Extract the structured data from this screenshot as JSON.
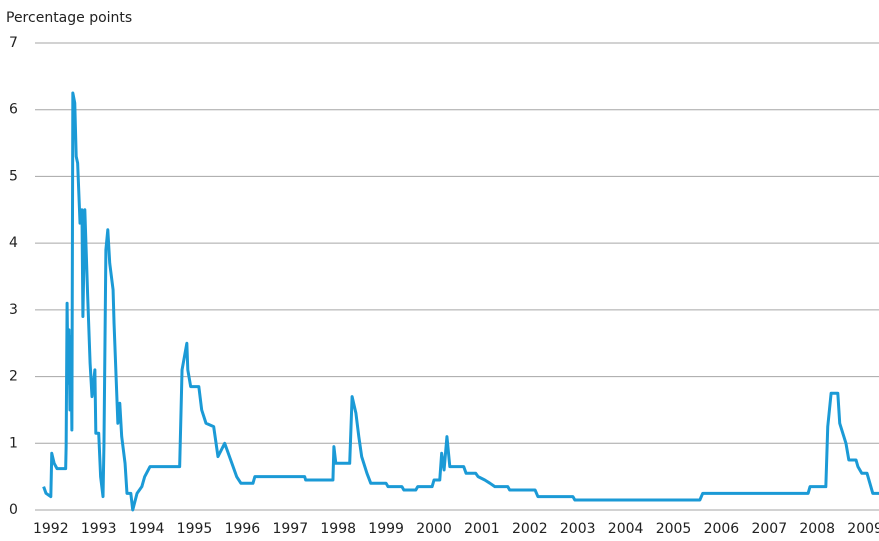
{
  "chart_data": {
    "type": "line",
    "y_label": "Percentage points",
    "color": "#1b9ad6",
    "xlim": [
      1992.17,
      2009.79
    ],
    "ylim": [
      0,
      7
    ],
    "yticks": [
      0,
      1,
      2,
      3,
      4,
      5,
      6,
      7
    ],
    "grid": true,
    "xticks": [
      {
        "value": 1992.5,
        "label": "1992"
      },
      {
        "value": 1993.5,
        "label": "1993"
      },
      {
        "value": 1994.5,
        "label": "1994"
      },
      {
        "value": 1995.5,
        "label": "1995"
      },
      {
        "value": 1996.5,
        "label": "1996"
      },
      {
        "value": 1997.5,
        "label": "1997"
      },
      {
        "value": 1998.5,
        "label": "1998"
      },
      {
        "value": 1999.5,
        "label": "1999"
      },
      {
        "value": 2000.5,
        "label": "2000"
      },
      {
        "value": 2001.5,
        "label": "2001"
      },
      {
        "value": 2002.5,
        "label": "2002"
      },
      {
        "value": 2003.5,
        "label": "2003"
      },
      {
        "value": 2004.5,
        "label": "2004"
      },
      {
        "value": 2005.5,
        "label": "2005"
      },
      {
        "value": 2006.5,
        "label": "2006"
      },
      {
        "value": 2007.5,
        "label": "2007"
      },
      {
        "value": 2008.5,
        "label": "2008"
      },
      {
        "value": 2009.5,
        "label": "2009"
      }
    ],
    "x": [
      1992.35,
      1992.4,
      1992.5,
      1992.52,
      1992.57,
      1992.63,
      1992.81,
      1992.82,
      1992.84,
      1992.86,
      1992.88,
      1992.9,
      1992.92,
      1992.94,
      1992.96,
      1993.0,
      1993.03,
      1993.06,
      1993.11,
      1993.15,
      1993.17,
      1993.21,
      1993.27,
      1993.32,
      1993.36,
      1993.42,
      1993.44,
      1993.5,
      1993.54,
      1993.59,
      1993.61,
      1993.65,
      1993.69,
      1993.73,
      1993.8,
      1993.82,
      1993.9,
      1993.94,
      1993.98,
      1994.05,
      1994.09,
      1994.17,
      1994.21,
      1994.3,
      1994.4,
      1994.46,
      1994.57,
      1995.19,
      1995.24,
      1995.34,
      1995.36,
      1995.42,
      1995.59,
      1995.65,
      1995.74,
      1995.9,
      1995.99,
      1996.13,
      1996.28,
      1996.38,
      1996.47,
      1996.72,
      1996.76,
      1997.8,
      1997.82,
      1998.39,
      1998.41,
      1998.45,
      1998.74,
      1998.79,
      1998.87,
      1998.93,
      1998.99,
      1999.1,
      1999.18,
      1999.5,
      1999.54,
      1999.83,
      1999.87,
      2000.12,
      2000.16,
      2000.46,
      2000.5,
      2000.62,
      2000.66,
      2000.71,
      2000.77,
      2000.83,
      2001.12,
      2001.17,
      2001.37,
      2001.42,
      2001.56,
      2001.67,
      2001.77,
      2002.04,
      2002.08,
      2002.61,
      2002.67,
      2003.4,
      2003.44,
      2006.05,
      2006.11,
      2008.31,
      2008.35,
      2008.68,
      2008.72,
      2008.79,
      2008.93,
      2008.97,
      2009.1,
      2009.16,
      2009.31,
      2009.35,
      2009.43,
      2009.54,
      2009.6,
      2009.66,
      2009.79
    ],
    "values": [
      0.35,
      0.25,
      0.2,
      0.85,
      0.7,
      0.62,
      0.62,
      0.95,
      3.1,
      1.9,
      2.7,
      1.5,
      2.6,
      1.2,
      6.25,
      6.1,
      5.3,
      5.2,
      4.3,
      4.5,
      2.9,
      4.5,
      3.2,
      2.2,
      1.7,
      2.1,
      1.15,
      1.15,
      0.5,
      0.2,
      1.0,
      3.9,
      4.2,
      3.7,
      3.3,
      2.8,
      1.3,
      1.6,
      1.1,
      0.7,
      0.25,
      0.25,
      0,
      0.25,
      0.35,
      0.5,
      0.65,
      0.65,
      2.1,
      2.5,
      2.1,
      1.85,
      1.85,
      1.5,
      1.3,
      1.25,
      0.8,
      1.0,
      0.7,
      0.5,
      0.4,
      0.4,
      0.5,
      0.5,
      0.45,
      0.45,
      0.95,
      0.7,
      0.7,
      1.7,
      1.45,
      1.1,
      0.8,
      0.55,
      0.4,
      0.4,
      0.35,
      0.35,
      0.3,
      0.3,
      0.35,
      0.35,
      0.45,
      0.45,
      0.85,
      0.6,
      1.1,
      0.65,
      0.65,
      0.55,
      0.55,
      0.5,
      0.45,
      0.4,
      0.35,
      0.35,
      0.3,
      0.3,
      0.2,
      0.2,
      0.15,
      0.15,
      0.25,
      0.25,
      0.35,
      0.35,
      1.25,
      1.75,
      1.75,
      1.3,
      1.0,
      0.75,
      0.75,
      0.65,
      0.55,
      0.55,
      0.4,
      0.25,
      0.25
    ]
  }
}
